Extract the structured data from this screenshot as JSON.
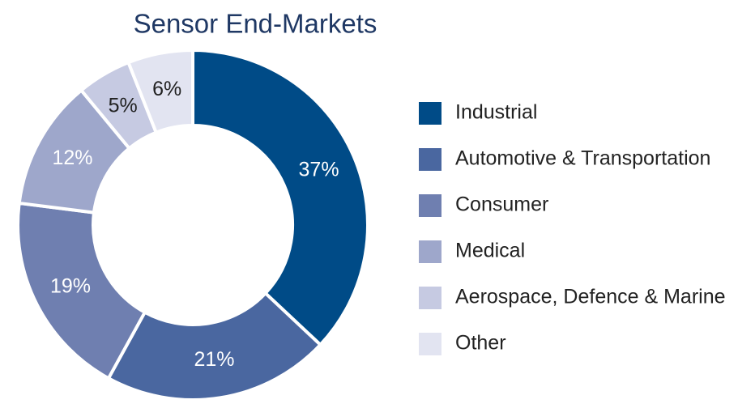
{
  "chart_data": {
    "type": "pie",
    "title": "Sensor End-Markets",
    "categories": [
      "Industrial",
      "Automotive & Transportation",
      "Consumer",
      "Medical",
      "Aerospace, Defence & Marine",
      "Other"
    ],
    "values": [
      37,
      21,
      19,
      12,
      5,
      6
    ],
    "value_labels": [
      "37%",
      "21%",
      "19%",
      "12%",
      "5%",
      "6%"
    ],
    "colors": [
      "#004b87",
      "#4a67a0",
      "#6f7fb0",
      "#9ea7cb",
      "#c6cae2",
      "#e2e4f1"
    ],
    "donut": true,
    "legend": "right"
  }
}
